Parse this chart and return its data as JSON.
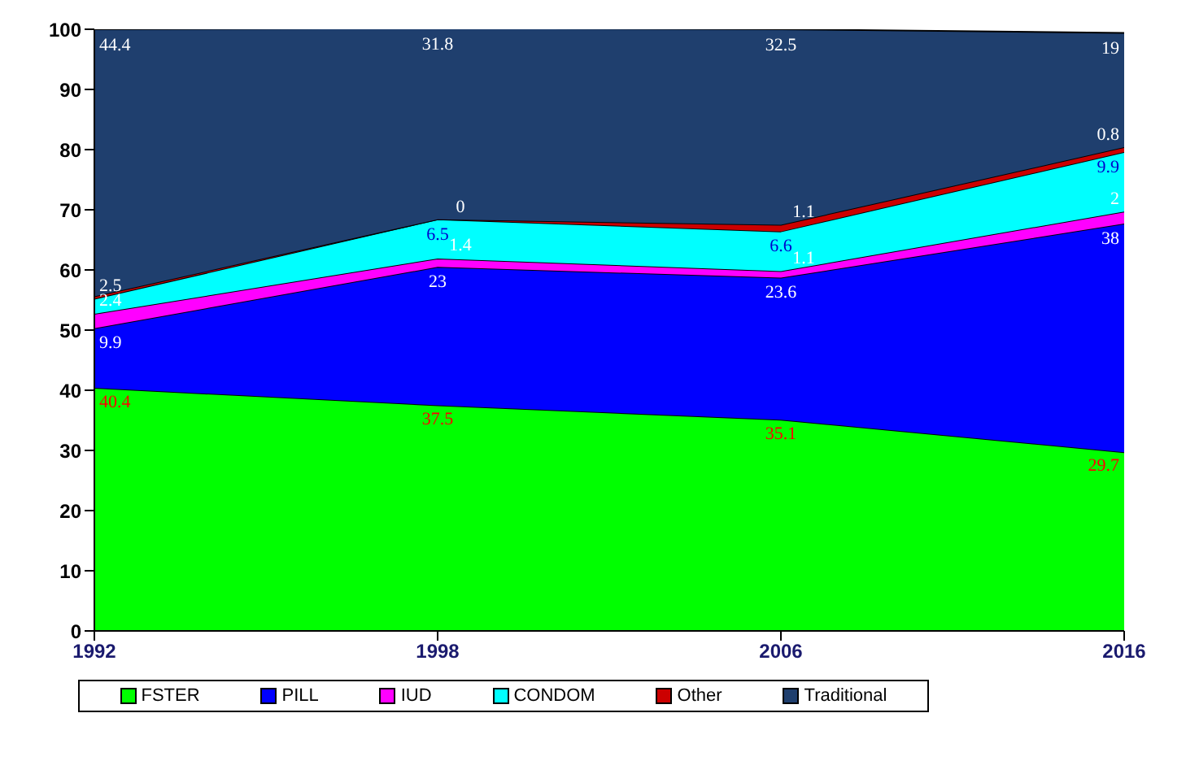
{
  "chart_data": {
    "type": "area",
    "stacked": true,
    "categories": [
      "1992",
      "1998",
      "2006",
      "2016"
    ],
    "series": [
      {
        "name": "FSTER",
        "color": "#00ff00",
        "values": [
          40.4,
          37.5,
          35.1,
          29.7
        ],
        "value_labels": [
          "40.4",
          "37.5",
          "35.1",
          "29.7"
        ]
      },
      {
        "name": "PILL",
        "color": "#0000ff",
        "values": [
          9.9,
          23,
          23.6,
          38
        ],
        "value_labels": [
          "9.9",
          "23",
          "23.6",
          "38"
        ]
      },
      {
        "name": "IUD",
        "color": "#ff00ff",
        "values": [
          2.4,
          1.4,
          1.1,
          2
        ],
        "value_labels": [
          "2.4",
          "1.4",
          "1.1",
          "2"
        ]
      },
      {
        "name": "CONDOM",
        "color": "#00ffff",
        "values": [
          2.5,
          6.5,
          6.6,
          9.9
        ],
        "value_labels": [
          "2.5",
          "6.5",
          "6.6",
          "9.9"
        ]
      },
      {
        "name": "Other",
        "color": "#cc0000",
        "values": [
          0.4,
          0,
          1.1,
          0.8
        ],
        "value_labels": [
          null,
          "0",
          "1.1",
          "0.8"
        ]
      },
      {
        "name": "Traditional",
        "color": "#1f3f6e",
        "values": [
          44.4,
          31.8,
          32.5,
          19
        ],
        "value_labels": [
          "44.4",
          "31.8",
          "32.5",
          "19"
        ]
      }
    ],
    "ylim": [
      0,
      100
    ],
    "yticks": [
      0,
      10,
      20,
      30,
      40,
      50,
      60,
      70,
      80,
      90,
      100
    ],
    "legend": "bottom"
  }
}
